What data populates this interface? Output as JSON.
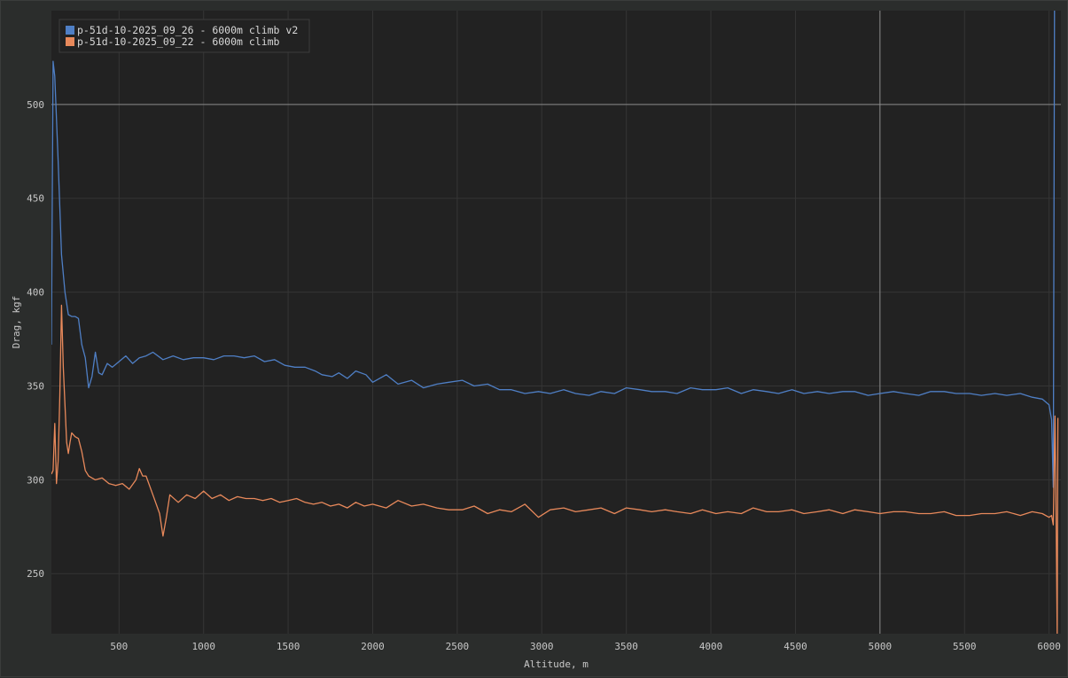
{
  "chart_data": {
    "type": "line",
    "xlabel": "Altitude, m",
    "ylabel": "Drag, kgf",
    "xlim": [
      100,
      6070
    ],
    "ylim": [
      218,
      550
    ],
    "x_ticks": [
      500,
      1000,
      1500,
      2000,
      2500,
      3000,
      3500,
      4000,
      4500,
      5000,
      5500,
      6000
    ],
    "y_ticks": [
      250,
      300,
      350,
      400,
      450,
      500
    ],
    "grid": true,
    "legend_position": "top-left",
    "background": "#222222",
    "grid_color": "#353535",
    "cursor_color": "#8a8a8a",
    "cursor": {
      "x": 5000,
      "y": 500
    },
    "series": [
      {
        "name": "p-51d-10-2025_09_26 - 6000m climb v2",
        "color": "#4f7fc5",
        "x": [
          100,
          110,
          120,
          140,
          160,
          180,
          200,
          220,
          240,
          260,
          280,
          300,
          320,
          340,
          360,
          380,
          400,
          430,
          460,
          500,
          540,
          580,
          620,
          660,
          700,
          760,
          820,
          880,
          940,
          1000,
          1060,
          1120,
          1180,
          1240,
          1300,
          1360,
          1420,
          1480,
          1540,
          1600,
          1660,
          1700,
          1760,
          1800,
          1850,
          1900,
          1960,
          2000,
          2080,
          2150,
          2230,
          2300,
          2380,
          2450,
          2530,
          2600,
          2680,
          2750,
          2820,
          2900,
          2980,
          3050,
          3130,
          3200,
          3280,
          3350,
          3430,
          3500,
          3580,
          3650,
          3730,
          3800,
          3880,
          3950,
          4030,
          4100,
          4180,
          4250,
          4330,
          4400,
          4480,
          4550,
          4630,
          4700,
          4780,
          4850,
          4930,
          5000,
          5080,
          5150,
          5230,
          5300,
          5380,
          5450,
          5530,
          5600,
          5680,
          5750,
          5830,
          5900,
          5960,
          6000,
          6015,
          6025,
          6032
        ],
        "y": [
          372,
          523,
          515,
          470,
          420,
          400,
          388,
          387,
          387,
          386,
          372,
          365,
          349,
          355,
          368,
          357,
          356,
          362,
          360,
          363,
          366,
          362,
          365,
          366,
          368,
          364,
          366,
          364,
          365,
          365,
          364,
          366,
          366,
          365,
          366,
          363,
          364,
          361,
          360,
          360,
          358,
          356,
          355,
          357,
          354,
          358,
          356,
          352,
          356,
          351,
          353,
          349,
          351,
          352,
          353,
          350,
          351,
          348,
          348,
          346,
          347,
          346,
          348,
          346,
          345,
          347,
          346,
          349,
          348,
          347,
          347,
          346,
          349,
          348,
          348,
          349,
          346,
          348,
          347,
          346,
          348,
          346,
          347,
          346,
          347,
          347,
          345,
          346,
          347,
          346,
          345,
          347,
          347,
          346,
          346,
          345,
          346,
          345,
          346,
          344,
          343,
          340,
          332,
          296,
          555
        ]
      },
      {
        "name": "p-51d-10-2025_09_22 - 6000m climb",
        "color": "#e8895b",
        "x": [
          100,
          110,
          120,
          130,
          140,
          150,
          160,
          170,
          180,
          190,
          200,
          210,
          220,
          240,
          260,
          280,
          300,
          320,
          340,
          360,
          400,
          440,
          480,
          520,
          560,
          600,
          620,
          640,
          660,
          700,
          740,
          760,
          780,
          800,
          850,
          900,
          950,
          1000,
          1050,
          1100,
          1150,
          1200,
          1250,
          1300,
          1350,
          1400,
          1450,
          1500,
          1550,
          1600,
          1650,
          1700,
          1750,
          1800,
          1850,
          1900,
          1950,
          2000,
          2080,
          2150,
          2230,
          2300,
          2380,
          2450,
          2530,
          2600,
          2680,
          2750,
          2820,
          2900,
          2980,
          3050,
          3130,
          3200,
          3280,
          3350,
          3430,
          3500,
          3580,
          3650,
          3730,
          3800,
          3880,
          3950,
          4030,
          4100,
          4180,
          4250,
          4330,
          4400,
          4480,
          4550,
          4630,
          4700,
          4780,
          4850,
          4930,
          5000,
          5080,
          5150,
          5230,
          5300,
          5380,
          5450,
          5530,
          5600,
          5680,
          5750,
          5830,
          5900,
          5960,
          6000,
          6015,
          6025,
          6035,
          6042,
          6048,
          6052
        ],
        "y": [
          303,
          305,
          330,
          298,
          310,
          345,
          393,
          360,
          340,
          320,
          314,
          320,
          325,
          323,
          322,
          315,
          305,
          302,
          301,
          300,
          301,
          298,
          297,
          298,
          295,
          300,
          306,
          302,
          302,
          292,
          282,
          270,
          280,
          292,
          288,
          292,
          290,
          294,
          290,
          292,
          289,
          291,
          290,
          290,
          289,
          290,
          288,
          289,
          290,
          288,
          287,
          288,
          286,
          287,
          285,
          288,
          286,
          287,
          285,
          289,
          286,
          287,
          285,
          284,
          284,
          286,
          282,
          284,
          283,
          287,
          280,
          284,
          285,
          283,
          284,
          285,
          282,
          285,
          284,
          283,
          284,
          283,
          282,
          284,
          282,
          283,
          282,
          285,
          283,
          283,
          284,
          282,
          283,
          284,
          282,
          284,
          283,
          282,
          283,
          283,
          282,
          282,
          283,
          281,
          281,
          282,
          282,
          283,
          281,
          283,
          282,
          280,
          281,
          276,
          334,
          275,
          218,
          333
        ]
      }
    ]
  }
}
